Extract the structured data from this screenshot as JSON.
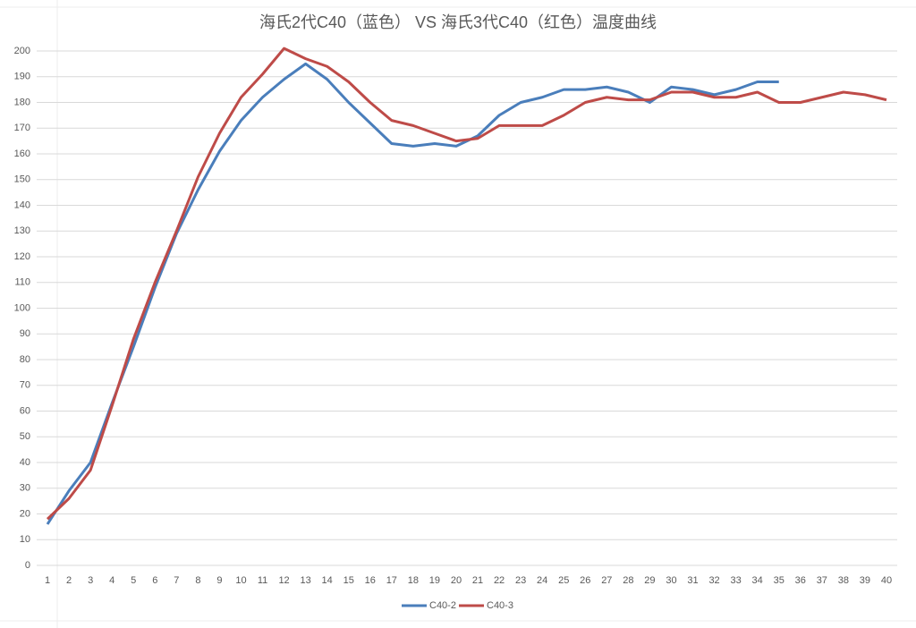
{
  "chart_data": {
    "type": "line",
    "title": "海氏2代C40（蓝色） VS 海氏3代C40（红色）温度曲线",
    "categories": [
      1,
      2,
      3,
      4,
      5,
      6,
      7,
      8,
      9,
      10,
      11,
      12,
      13,
      14,
      15,
      16,
      17,
      18,
      19,
      20,
      21,
      22,
      23,
      24,
      25,
      26,
      27,
      28,
      29,
      30,
      31,
      32,
      33,
      34,
      35,
      36,
      37,
      38,
      39,
      40
    ],
    "series": [
      {
        "name": "C40-2",
        "color": "#4a7ebb",
        "values": [
          16,
          29,
          40,
          63,
          85,
          108,
          129,
          146,
          161,
          173,
          182,
          189,
          195,
          189,
          180,
          172,
          164,
          163,
          164,
          163,
          167,
          175,
          180,
          182,
          185,
          185,
          186,
          184,
          180,
          186,
          185,
          183,
          185,
          188,
          188,
          null,
          null,
          null,
          null,
          null
        ]
      },
      {
        "name": "C40-3",
        "color": "#be4b48",
        "values": [
          18,
          26,
          37,
          62,
          88,
          110,
          130,
          151,
          168,
          182,
          191,
          201,
          197,
          194,
          188,
          180,
          173,
          171,
          168,
          165,
          166,
          171,
          171,
          171,
          175,
          180,
          182,
          181,
          181,
          184,
          184,
          182,
          182,
          184,
          180,
          180,
          182,
          184,
          183,
          181
        ]
      }
    ],
    "ylim": [
      0,
      200
    ],
    "yticks": [
      0,
      10,
      20,
      30,
      40,
      50,
      60,
      70,
      80,
      90,
      100,
      110,
      120,
      130,
      140,
      150,
      160,
      170,
      180,
      190,
      200
    ],
    "grid": true,
    "legend": "bottom"
  }
}
